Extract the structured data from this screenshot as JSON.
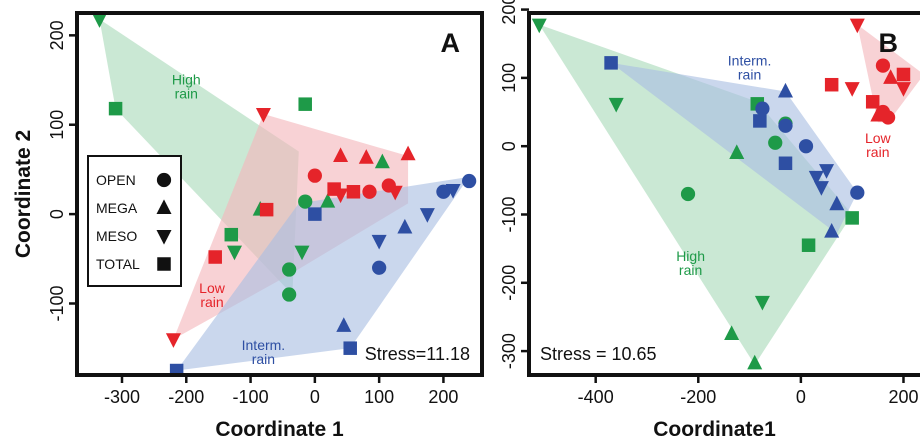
{
  "colors": {
    "open": "#e5242a",
    "interm": "#2e4fa3",
    "high": "#1e9a48",
    "frame": "#111111",
    "fill_high": "#a9dab9",
    "fill_low": "#f4b6bb",
    "fill_interm": "#a9bfe2"
  },
  "legend": [
    {
      "label": "OPEN",
      "shape": "circle"
    },
    {
      "label": "MEGA",
      "shape": "triangle-up"
    },
    {
      "label": "MESO",
      "shape": "triangle-down"
    },
    {
      "label": "TOTAL",
      "shape": "square"
    }
  ],
  "chart_data": [
    {
      "type": "scatter",
      "panel_label": "A",
      "xlabel": "Coordinate 1",
      "ylabel": "Coordinate 2",
      "stress_label": "Stress=11.18",
      "xlim": [
        -370,
        260
      ],
      "ylim": [
        -180,
        225
      ],
      "xticks": [
        -300,
        -200,
        -100,
        0,
        100,
        200
      ],
      "xtick_labels": [
        "-300",
        "-200",
        "-100",
        "0",
        "100",
        "200"
      ],
      "yticks": [
        -100,
        0,
        100,
        200
      ],
      "ytick_labels": [
        "-100",
        "0",
        "100",
        "200"
      ],
      "groups": [
        {
          "name": "High",
          "label_lines": [
            "High",
            "rain"
          ],
          "label_pos": [
            -200,
            145
          ],
          "color": "high",
          "fill": "fill_high",
          "hull": [
            [
              -335,
              218
            ],
            [
              -25,
              70
            ],
            [
              -35,
              -90
            ],
            [
              -310,
              118
            ]
          ],
          "points": [
            {
              "x": -335,
              "y": 218,
              "shape": "triangle-down"
            },
            {
              "x": -310,
              "y": 118,
              "shape": "square"
            },
            {
              "x": -15,
              "y": 123,
              "shape": "square"
            },
            {
              "x": -130,
              "y": -23,
              "shape": "square"
            },
            {
              "x": -125,
              "y": -42,
              "shape": "triangle-down"
            },
            {
              "x": -85,
              "y": 5,
              "shape": "triangle-up"
            },
            {
              "x": -15,
              "y": 14,
              "shape": "circle"
            },
            {
              "x": -40,
              "y": -62,
              "shape": "circle"
            },
            {
              "x": -40,
              "y": -90,
              "shape": "circle"
            },
            {
              "x": 20,
              "y": 14,
              "shape": "triangle-up"
            },
            {
              "x": -20,
              "y": -42,
              "shape": "triangle-down"
            },
            {
              "x": 105,
              "y": 58,
              "shape": "triangle-up"
            }
          ]
        },
        {
          "name": "Low",
          "label_lines": [
            "Low",
            "rain"
          ],
          "label_pos": [
            -160,
            -88
          ],
          "color": "open",
          "fill": "fill_low",
          "hull": [
            [
              -220,
              -140
            ],
            [
              -80,
              112
            ],
            [
              145,
              65
            ],
            [
              145,
              12
            ],
            [
              -40,
              -68
            ]
          ],
          "points": [
            {
              "x": -220,
              "y": -140,
              "shape": "triangle-down"
            },
            {
              "x": -155,
              "y": -48,
              "shape": "square"
            },
            {
              "x": -75,
              "y": 5,
              "shape": "square"
            },
            {
              "x": -80,
              "y": 112,
              "shape": "triangle-down"
            },
            {
              "x": 0,
              "y": 43,
              "shape": "circle"
            },
            {
              "x": 30,
              "y": 28,
              "shape": "square"
            },
            {
              "x": 40,
              "y": 65,
              "shape": "triangle-up"
            },
            {
              "x": 40,
              "y": 22,
              "shape": "triangle-down"
            },
            {
              "x": 80,
              "y": 63,
              "shape": "triangle-up"
            },
            {
              "x": 85,
              "y": 25,
              "shape": "circle"
            },
            {
              "x": 115,
              "y": 32,
              "shape": "circle"
            },
            {
              "x": 125,
              "y": 25,
              "shape": "triangle-down"
            },
            {
              "x": 145,
              "y": 67,
              "shape": "triangle-up"
            },
            {
              "x": 60,
              "y": 25,
              "shape": "square"
            }
          ]
        },
        {
          "name": "Interm.",
          "label_lines": [
            "Interm.",
            "rain"
          ],
          "label_pos": [
            -80,
            -152
          ],
          "color": "interm",
          "fill": "fill_interm",
          "hull": [
            [
              -215,
              -175
            ],
            [
              55,
              -150
            ],
            [
              240,
              42
            ],
            [
              225,
              40
            ],
            [
              -25,
              12
            ]
          ],
          "points": [
            {
              "x": -215,
              "y": -175,
              "shape": "square"
            },
            {
              "x": 55,
              "y": -150,
              "shape": "square"
            },
            {
              "x": 45,
              "y": -125,
              "shape": "triangle-up"
            },
            {
              "x": 100,
              "y": -60,
              "shape": "circle"
            },
            {
              "x": 100,
              "y": -30,
              "shape": "triangle-down"
            },
            {
              "x": 140,
              "y": -15,
              "shape": "triangle-up"
            },
            {
              "x": 175,
              "y": 0,
              "shape": "triangle-down"
            },
            {
              "x": 200,
              "y": 25,
              "shape": "circle"
            },
            {
              "x": 215,
              "y": 27,
              "shape": "triangle-down"
            },
            {
              "x": 240,
              "y": 37,
              "shape": "circle"
            },
            {
              "x": 0,
              "y": 0,
              "shape": "square"
            }
          ]
        }
      ]
    },
    {
      "type": "scatter",
      "panel_label": "B",
      "xlabel": "Coordinate1",
      "ylabel": "",
      "stress_label": "Stress = 10.65",
      "xlim": [
        -530,
        240
      ],
      "ylim": [
        -335,
        195
      ],
      "xticks": [
        -400,
        -200,
        0,
        200
      ],
      "xtick_labels": [
        "-400",
        "-200",
        "0",
        "200"
      ],
      "yticks": [
        -300,
        -200,
        -100,
        0,
        100,
        200
      ],
      "ytick_labels": [
        "-300",
        "-200",
        "-100",
        "0",
        "100",
        "200"
      ],
      "groups": [
        {
          "name": "High",
          "label_lines": [
            "High",
            "rain"
          ],
          "label_pos": [
            -215,
            -168
          ],
          "color": "high",
          "fill": "fill_high",
          "hull": [
            [
              -510,
              178
            ],
            [
              -85,
              65
            ],
            [
              100,
              -100
            ],
            [
              -90,
              -320
            ]
          ],
          "points": [
            {
              "x": -510,
              "y": 178,
              "shape": "triangle-down"
            },
            {
              "x": -360,
              "y": 62,
              "shape": "triangle-down"
            },
            {
              "x": -85,
              "y": 62,
              "shape": "square"
            },
            {
              "x": -30,
              "y": 33,
              "shape": "circle"
            },
            {
              "x": -50,
              "y": 5,
              "shape": "circle"
            },
            {
              "x": -125,
              "y": -10,
              "shape": "triangle-up"
            },
            {
              "x": -220,
              "y": -70,
              "shape": "circle"
            },
            {
              "x": 100,
              "y": -105,
              "shape": "square"
            },
            {
              "x": 15,
              "y": -145,
              "shape": "square"
            },
            {
              "x": -75,
              "y": -228,
              "shape": "triangle-down"
            },
            {
              "x": -135,
              "y": -275,
              "shape": "triangle-up"
            },
            {
              "x": -90,
              "y": -318,
              "shape": "triangle-up"
            }
          ]
        },
        {
          "name": "Low",
          "label_lines": [
            "Low",
            "rain"
          ],
          "label_pos": [
            150,
            5
          ],
          "color": "open",
          "fill": "fill_low",
          "hull": [
            [
              110,
              178
            ],
            [
              240,
              105
            ],
            [
              170,
              35
            ],
            [
              150,
              35
            ]
          ],
          "points": [
            {
              "x": 110,
              "y": 178,
              "shape": "triangle-down"
            },
            {
              "x": 160,
              "y": 118,
              "shape": "circle"
            },
            {
              "x": 175,
              "y": 100,
              "shape": "triangle-up"
            },
            {
              "x": 200,
              "y": 105,
              "shape": "square"
            },
            {
              "x": 200,
              "y": 85,
              "shape": "triangle-down"
            },
            {
              "x": 60,
              "y": 90,
              "shape": "square"
            },
            {
              "x": 100,
              "y": 85,
              "shape": "triangle-down"
            },
            {
              "x": 140,
              "y": 65,
              "shape": "square"
            },
            {
              "x": 150,
              "y": 45,
              "shape": "triangle-up"
            },
            {
              "x": 160,
              "y": 50,
              "shape": "circle"
            },
            {
              "x": 170,
              "y": 42,
              "shape": "circle"
            }
          ]
        },
        {
          "name": "Interm.",
          "label_lines": [
            "Interm.",
            "rain"
          ],
          "label_pos": [
            -100,
            118
          ],
          "color": "interm",
          "fill": "fill_interm",
          "hull": [
            [
              -370,
              122
            ],
            [
              -30,
              80
            ],
            [
              110,
              -68
            ],
            [
              70,
              -128
            ]
          ],
          "points": [
            {
              "x": -370,
              "y": 122,
              "shape": "square"
            },
            {
              "x": -30,
              "y": 80,
              "shape": "triangle-up"
            },
            {
              "x": -75,
              "y": 55,
              "shape": "circle"
            },
            {
              "x": -80,
              "y": 37,
              "shape": "square"
            },
            {
              "x": -30,
              "y": 30,
              "shape": "circle"
            },
            {
              "x": -30,
              "y": -25,
              "shape": "square"
            },
            {
              "x": 10,
              "y": 0,
              "shape": "circle"
            },
            {
              "x": 30,
              "y": -45,
              "shape": "triangle-down"
            },
            {
              "x": 50,
              "y": -35,
              "shape": "triangle-down"
            },
            {
              "x": 40,
              "y": -60,
              "shape": "triangle-down"
            },
            {
              "x": 70,
              "y": -85,
              "shape": "triangle-up"
            },
            {
              "x": 110,
              "y": -68,
              "shape": "circle"
            },
            {
              "x": 60,
              "y": -125,
              "shape": "triangle-up"
            }
          ]
        }
      ]
    }
  ]
}
